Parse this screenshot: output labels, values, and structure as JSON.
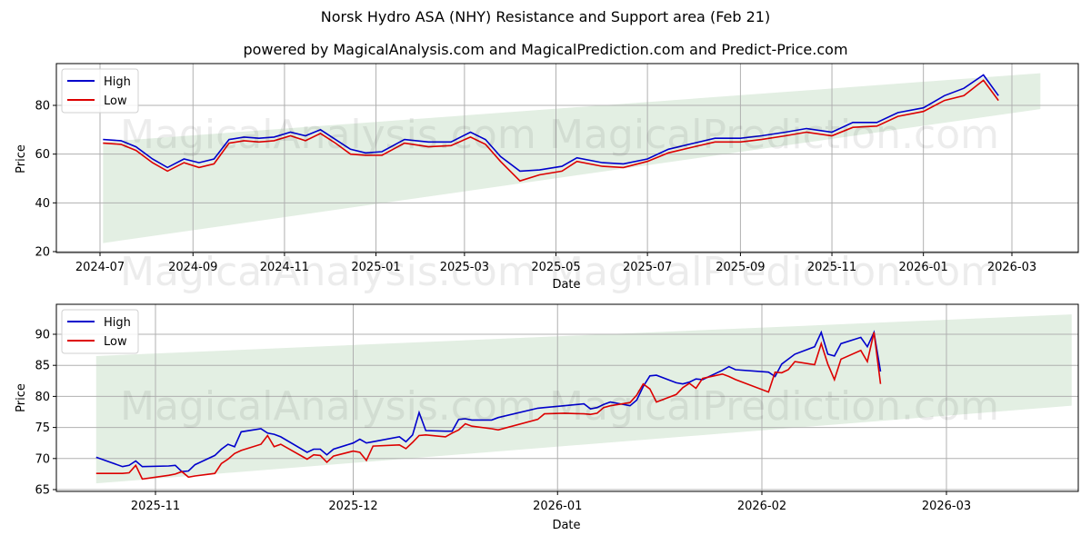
{
  "header": {
    "title": "Norsk Hydro ASA (NHY) Resistance and Support area (Feb 21)",
    "subtitle": "powered by MagicalAnalysis.com and MagicalPrediction.com and Predict-Price.com"
  },
  "watermarks": {
    "left": "MagicalAnalysis.com",
    "right": "MagicalPrediction.com"
  },
  "colors": {
    "high": "#0000cc",
    "low": "#dd0000",
    "band": "#e3efe3",
    "grid": "#b0b0b0"
  },
  "legend": {
    "high_label": "High",
    "low_label": "Low"
  },
  "chart_data": [
    {
      "type": "line",
      "title": "Full history",
      "xlabel": "Date",
      "ylabel": "Price",
      "ylim": [
        20,
        97
      ],
      "yticks": [
        20,
        40,
        60,
        80
      ],
      "xticks": [
        "2024-07",
        "2024-09",
        "2024-11",
        "2025-01",
        "2025-03",
        "2025-05",
        "2025-07",
        "2025-09",
        "2025-11",
        "2026-01",
        "2026-03"
      ],
      "grid": true,
      "legend_position": "upper left",
      "band": {
        "name": "Resistance/Support area",
        "x_start": "2024-07-03",
        "x_end": "2026-03-20",
        "upper": [
          65.0,
          93.2
        ],
        "lower": [
          23.5,
          78.5
        ]
      },
      "x": [
        "2024-07-03",
        "2024-07-15",
        "2024-07-25",
        "2024-08-05",
        "2024-08-15",
        "2024-08-26",
        "2024-09-05",
        "2024-09-15",
        "2024-09-25",
        "2024-10-05",
        "2024-10-15",
        "2024-10-25",
        "2024-11-05",
        "2024-11-15",
        "2024-11-25",
        "2024-12-05",
        "2024-12-15",
        "2024-12-25",
        "2025-01-05",
        "2025-01-20",
        "2025-02-05",
        "2025-02-20",
        "2025-03-05",
        "2025-03-15",
        "2025-03-25",
        "2025-04-07",
        "2025-04-20",
        "2025-05-05",
        "2025-05-15",
        "2025-06-01",
        "2025-06-15",
        "2025-07-01",
        "2025-07-15",
        "2025-08-01",
        "2025-08-15",
        "2025-09-01",
        "2025-09-15",
        "2025-10-01",
        "2025-10-15",
        "2025-11-01",
        "2025-11-15",
        "2025-12-01",
        "2025-12-15",
        "2026-01-01",
        "2026-01-15",
        "2026-01-28",
        "2026-02-10",
        "2026-02-20"
      ],
      "series": [
        {
          "name": "High",
          "values": [
            66,
            65.5,
            63,
            58,
            54.5,
            58,
            56.5,
            58,
            66,
            67,
            66.5,
            67,
            69,
            67.5,
            70,
            66,
            62,
            60.5,
            61,
            66,
            65,
            65,
            69,
            66,
            59,
            53,
            53.5,
            55,
            58.5,
            56.5,
            56,
            58,
            62,
            64.5,
            66.5,
            66.5,
            67.5,
            69,
            70.5,
            69,
            73,
            73,
            77,
            79,
            84,
            87,
            92.5,
            84
          ]
        },
        {
          "name": "Low",
          "values": [
            64.5,
            64,
            61.5,
            56.5,
            53,
            56.5,
            54.5,
            56,
            64.5,
            65.5,
            65,
            65.5,
            67.5,
            65.5,
            68.5,
            64.5,
            60,
            59.5,
            59.5,
            64.5,
            63,
            63.5,
            67,
            64,
            57,
            49,
            51.5,
            53,
            57,
            55,
            54.5,
            57,
            60.5,
            63,
            65,
            65,
            66,
            67.5,
            69,
            67.5,
            71,
            71.5,
            75.5,
            77.5,
            82,
            84,
            90.3,
            82
          ]
        }
      ]
    },
    {
      "type": "line",
      "title": "Recent detail",
      "xlabel": "Date",
      "ylabel": "Price",
      "ylim": [
        64.6,
        94.5
      ],
      "yticks": [
        65,
        70,
        75,
        80,
        85,
        90
      ],
      "xticks": [
        "2025-11",
        "2025-12",
        "2026-01",
        "2026-02",
        "2026-03"
      ],
      "grid": true,
      "legend_position": "upper left",
      "band": {
        "name": "Resistance/Support area",
        "x_start": "2025-10-23",
        "x_end": "2026-03-20",
        "upper": [
          86.5,
          93.2
        ],
        "lower": [
          66.0,
          78.5
        ]
      },
      "x": [
        "2025-10-23",
        "2025-10-27",
        "2025-10-28",
        "2025-10-29",
        "2025-10-30",
        "2025-11-03",
        "2025-11-04",
        "2025-11-05",
        "2025-11-06",
        "2025-11-07",
        "2025-11-10",
        "2025-11-11",
        "2025-11-12",
        "2025-11-13",
        "2025-11-14",
        "2025-11-17",
        "2025-11-18",
        "2025-11-19",
        "2025-11-20",
        "2025-11-24",
        "2025-11-25",
        "2025-11-26",
        "2025-11-27",
        "2025-11-28",
        "2025-12-01",
        "2025-12-02",
        "2025-12-03",
        "2025-12-04",
        "2025-12-08",
        "2025-12-09",
        "2025-12-10",
        "2025-12-11",
        "2025-12-12",
        "2025-12-15",
        "2025-12-16",
        "2025-12-17",
        "2025-12-18",
        "2025-12-19",
        "2025-12-22",
        "2025-12-23",
        "2025-12-29",
        "2025-12-30",
        "2026-01-02",
        "2026-01-05",
        "2026-01-06",
        "2026-01-07",
        "2026-01-08",
        "2026-01-09",
        "2026-01-12",
        "2026-01-13",
        "2026-01-14",
        "2026-01-15",
        "2026-01-16",
        "2026-01-19",
        "2026-01-20",
        "2026-01-21",
        "2026-01-22",
        "2026-01-23",
        "2026-01-26",
        "2026-01-27",
        "2026-01-28",
        "2026-02-02",
        "2026-02-03",
        "2026-02-04",
        "2026-02-05",
        "2026-02-06",
        "2026-02-09",
        "2026-02-10",
        "2026-02-11",
        "2026-02-12",
        "2026-02-13",
        "2026-02-16",
        "2026-02-17",
        "2026-02-18",
        "2026-02-19"
      ],
      "series": [
        {
          "name": "High",
          "values": [
            70.2,
            68.7,
            68.9,
            69.6,
            68.7,
            68.8,
            68.9,
            67.9,
            68.0,
            69.0,
            70.5,
            71.5,
            72.3,
            71.9,
            74.3,
            74.8,
            74.1,
            73.9,
            73.5,
            71.0,
            71.5,
            71.5,
            70.6,
            71.5,
            72.5,
            73.1,
            72.5,
            72.7,
            73.5,
            72.7,
            73.8,
            77.4,
            74.5,
            74.4,
            74.4,
            76.3,
            76.4,
            76.2,
            76.2,
            76.6,
            78.1,
            78.2,
            78.5,
            78.8,
            78.0,
            78.2,
            78.7,
            79.1,
            78.5,
            79.4,
            81.6,
            83.3,
            83.4,
            82.2,
            82.0,
            82.3,
            82.8,
            82.7,
            84.2,
            84.8,
            84.3,
            83.9,
            83.2,
            85.2,
            86.0,
            86.8,
            88.0,
            90.3,
            86.8,
            86.5,
            88.5,
            89.5,
            88.0,
            90.3,
            84.0
          ]
        },
        {
          "name": "Low",
          "values": [
            67.6,
            67.6,
            67.7,
            68.9,
            66.7,
            67.3,
            67.5,
            67.9,
            67.0,
            67.2,
            67.6,
            69.2,
            69.9,
            70.8,
            71.3,
            72.3,
            73.7,
            71.9,
            72.3,
            69.9,
            70.6,
            70.5,
            69.4,
            70.4,
            71.2,
            71.0,
            69.7,
            72.0,
            72.2,
            71.6,
            72.6,
            73.7,
            73.8,
            73.5,
            74.1,
            74.6,
            75.6,
            75.2,
            74.8,
            74.6,
            76.3,
            77.2,
            77.3,
            77.2,
            77.1,
            77.3,
            78.2,
            78.5,
            79.0,
            80.2,
            82.0,
            81.2,
            79.1,
            80.3,
            81.4,
            82.1,
            81.3,
            82.9,
            83.6,
            83.2,
            82.7,
            80.7,
            83.9,
            83.8,
            84.3,
            85.6,
            85.1,
            88.5,
            85.2,
            82.7,
            86.0,
            87.4,
            85.6,
            90.3,
            82.0
          ]
        }
      ]
    }
  ]
}
